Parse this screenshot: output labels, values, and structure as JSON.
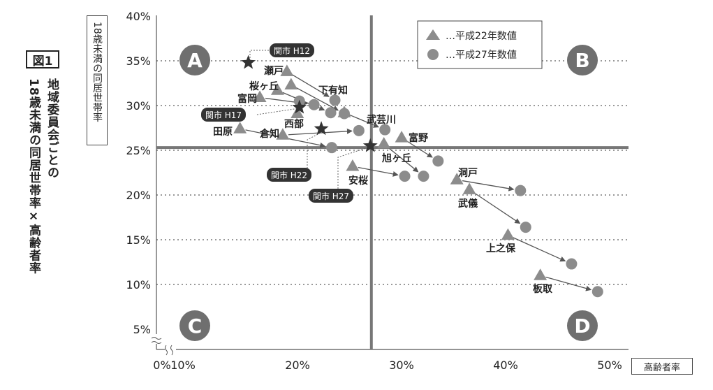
{
  "figure": {
    "number_label": "図1",
    "title_line1": "地域委員会ごとの",
    "title_line2": "18歳未満の同居世帯率×高齢者率",
    "y_axis_label": "18歳未満の同居世帯率",
    "x_axis_label": "高齢者率"
  },
  "legend": {
    "h22": "…平成22年数値",
    "h27": "…平成27年数値"
  },
  "quadrants": [
    "A",
    "B",
    "C",
    "D"
  ],
  "chart_data": {
    "type": "scatter",
    "title": "地域委員会ごとの18歳未満の同居世帯率×高齢者率",
    "xlabel": "高齢者率",
    "ylabel": "18歳未満の同居世帯率",
    "x_ticks": [
      "0%",
      "10%",
      "20%",
      "30%",
      "40%",
      "50%"
    ],
    "y_ticks": [
      "5%",
      "10%",
      "15%",
      "20%",
      "25%",
      "30%",
      "35%",
      "40%"
    ],
    "xlim": [
      10,
      50
    ],
    "ylim": [
      5,
      40
    ],
    "reference_lines": {
      "x": 27.2,
      "y": 25.3
    },
    "series": [
      {
        "name": "平成22年数値",
        "marker": "triangle"
      },
      {
        "name": "平成27年数値",
        "marker": "circle"
      }
    ],
    "districts": [
      {
        "name": "瀬戸",
        "label": "瀬戸",
        "h22": [
          19.1,
          33.8
        ],
        "h27": [
          23.7,
          30.6
        ]
      },
      {
        "name": "下有知",
        "label": "下有知",
        "h22": [
          19.5,
          32.3
        ],
        "h27": [
          24.6,
          29.1
        ]
      },
      {
        "name": "桜ヶ丘",
        "label": "桜ヶ丘",
        "h22": [
          18.2,
          31.7
        ],
        "h27": [
          23.3,
          29.2
        ]
      },
      {
        "name": "富岡",
        "label": "富岡",
        "h22": [
          16.5,
          30.9
        ],
        "h27": [
          21.7,
          30.1
        ]
      },
      {
        "name": "西部",
        "label": "西部",
        "h22": [
          20.1,
          29.1
        ],
        "h27": [
          20.3,
          30.5
        ]
      },
      {
        "name": "武芸川",
        "label": "武芸川",
        "h22": [
          24.6,
          29.2
        ],
        "h27": [
          28.5,
          27.3
        ]
      },
      {
        "name": "田原",
        "label": "田原",
        "h22": [
          14.6,
          27.4
        ],
        "h27": [
          23.4,
          25.3
        ]
      },
      {
        "name": "倉知",
        "label": "倉知",
        "h22": [
          18.7,
          26.7
        ],
        "h27": [
          26.0,
          27.2
        ]
      },
      {
        "name": "富野",
        "label": "富野",
        "h22": [
          30.1,
          26.4
        ],
        "h27": [
          33.6,
          23.8
        ]
      },
      {
        "name": "旭ヶ丘",
        "label": "旭ヶ丘",
        "h22": [
          28.4,
          25.7
        ],
        "h27": [
          32.2,
          22.1
        ]
      },
      {
        "name": "安桜",
        "label": "安桜",
        "h22": [
          25.4,
          23.2
        ],
        "h27": [
          30.4,
          22.1
        ]
      },
      {
        "name": "洞戸",
        "label": "洞戸",
        "h22": [
          35.4,
          21.7
        ],
        "h27": [
          41.5,
          20.5
        ]
      },
      {
        "name": "武儀",
        "label": "武儀",
        "h22": [
          36.6,
          20.6
        ],
        "h27": [
          42.0,
          16.4
        ]
      },
      {
        "name": "上之保",
        "label": "上之保",
        "h22": [
          40.3,
          15.5
        ],
        "h27": [
          46.4,
          12.3
        ]
      },
      {
        "name": "板取",
        "label": "板取",
        "h22": [
          43.4,
          11.0
        ],
        "h27": [
          48.9,
          9.2
        ]
      }
    ],
    "city_points": [
      {
        "label": "関市 H12",
        "x": 15.4,
        "y": 34.8
      },
      {
        "label": "関市 H17",
        "x": 20.3,
        "y": 29.8
      },
      {
        "label": "関市 H22",
        "x": 22.4,
        "y": 27.4
      },
      {
        "label": "関市 H27",
        "x": 27.1,
        "y": 25.5
      }
    ]
  },
  "colors": {
    "marker_gray": "#8c8c8c",
    "circle_badge": "#6f6f6f",
    "line_dark": "#555555",
    "city_tag_bg": "#333333"
  }
}
